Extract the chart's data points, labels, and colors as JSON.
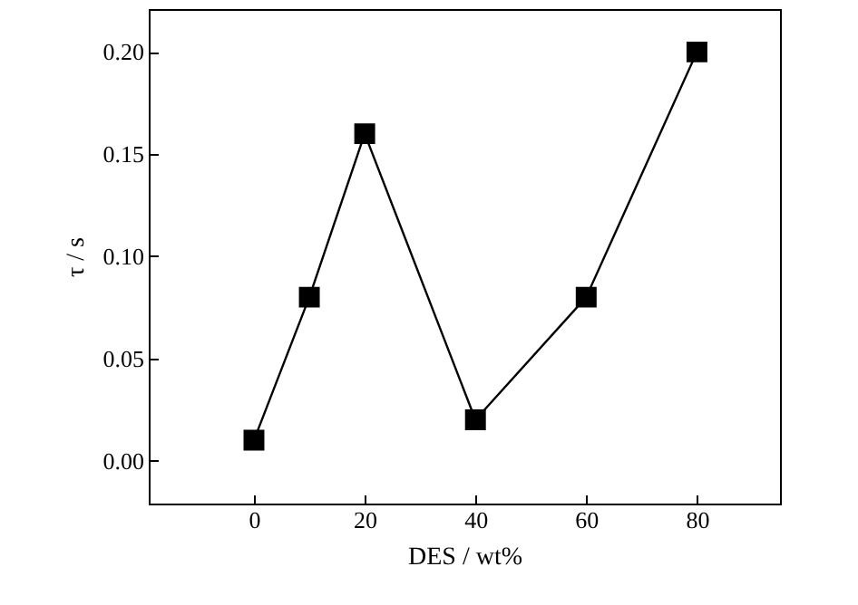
{
  "chart_data": {
    "type": "line",
    "xlabel": "DES / wt%",
    "ylabel": "τ / s",
    "x": [
      0,
      10,
      20,
      40,
      60,
      80
    ],
    "series": [
      {
        "color": "#000000",
        "values": [
          0.01,
          0.08,
          0.16,
          0.02,
          0.08,
          0.2
        ]
      }
    ],
    "xlim": [
      -19,
      95
    ],
    "xticks": [
      0,
      20,
      40,
      60,
      80
    ],
    "ylim": [
      -0.021,
      0.221
    ],
    "yticks": [
      {
        "value": 0,
        "label": "0.00"
      },
      {
        "value": 0.05,
        "label": "0.05"
      },
      {
        "value": 0.1,
        "label": "0.10"
      },
      {
        "value": 0.15,
        "label": "0.15"
      },
      {
        "value": 0.2,
        "label": "0.20"
      }
    ],
    "marker": "square",
    "line_style": "solid",
    "grid": false
  }
}
